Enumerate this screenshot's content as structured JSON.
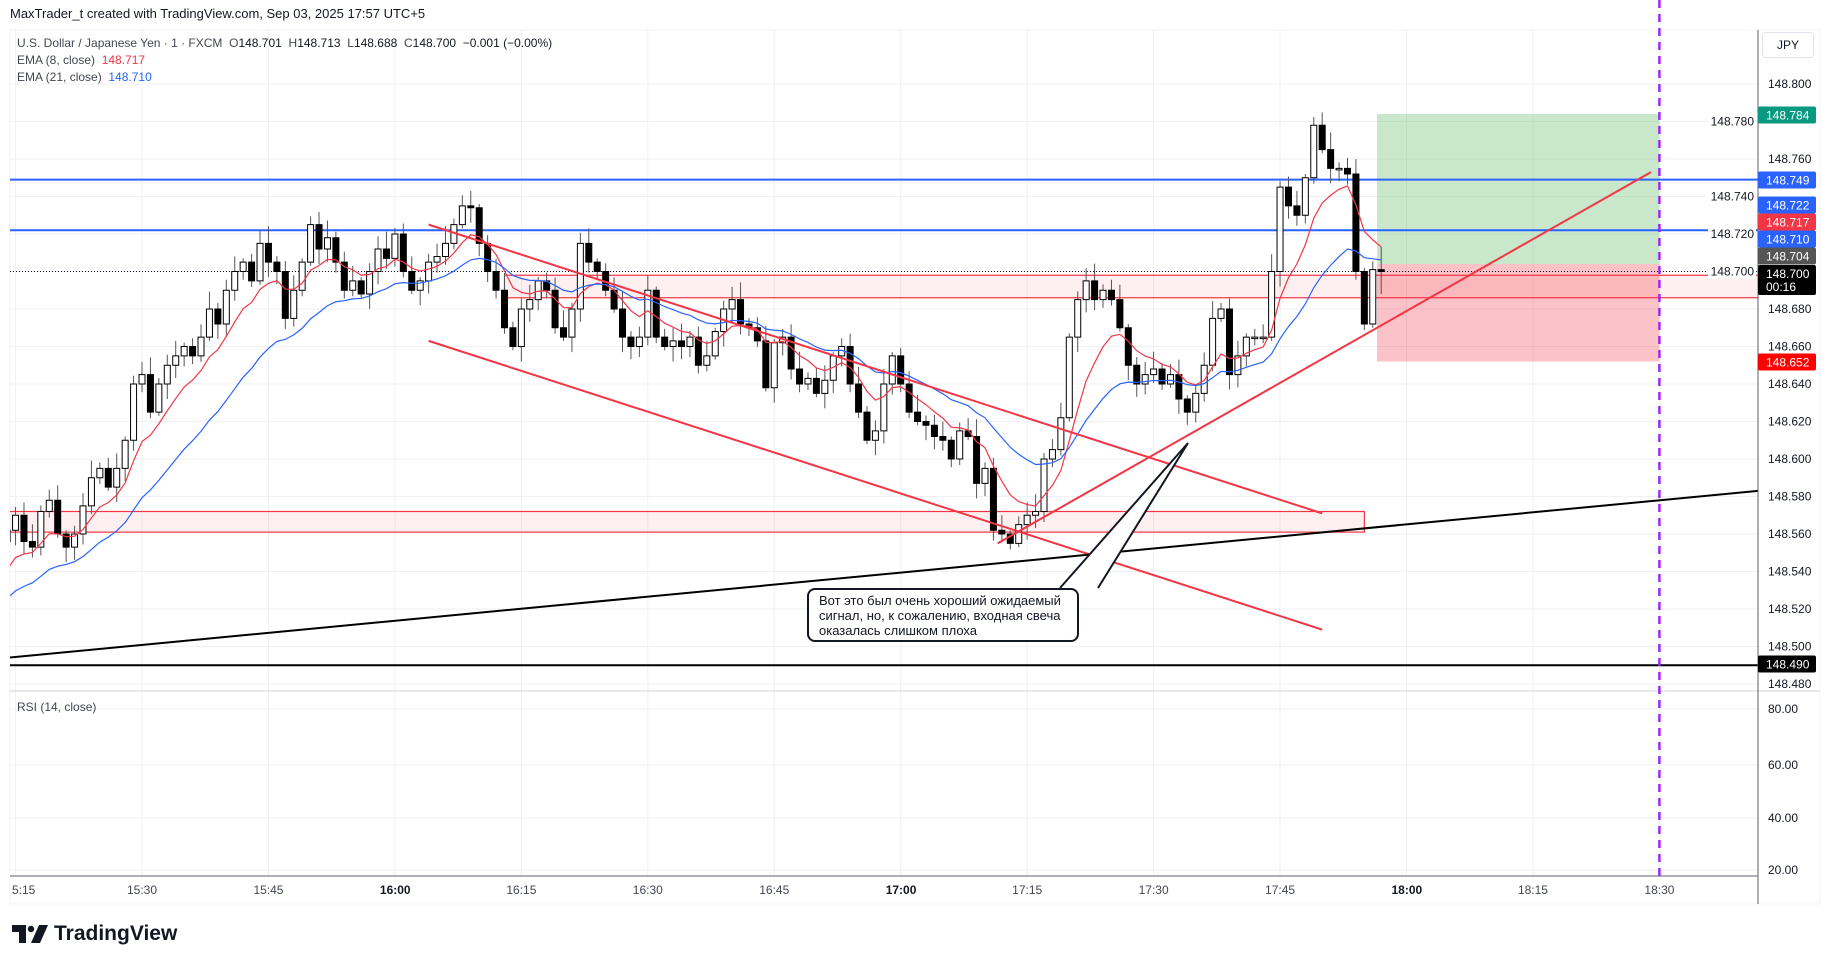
{
  "credit": "MaxTrader_t created with TradingView.com, Sep 03, 2025 17:57 UTC+5",
  "symbol": {
    "name": "U.S. Dollar / Japanese Yen · 1 · FXCM",
    "o_label": "O",
    "o": "148.701",
    "h_label": "H",
    "h": "148.713",
    "l_label": "L",
    "l": "148.688",
    "c_label": "C",
    "c": "148.700",
    "change": "−0.001 (−0.00%)"
  },
  "indicators": {
    "ema8": {
      "label": "EMA (8, close)",
      "value": "148.717",
      "color": "#f23645"
    },
    "ema21": {
      "label": "EMA (21, close)",
      "value": "148.710",
      "color": "#2962ff"
    },
    "rsi": {
      "label": "RSI (14, close)"
    }
  },
  "currency_button": "JPY",
  "price_axis": {
    "ticks": [
      "148.800",
      "148.780",
      "148.760",
      "148.740",
      "148.720",
      "148.700",
      "148.680",
      "148.660",
      "148.640",
      "148.620",
      "148.600",
      "148.580",
      "148.560",
      "148.540",
      "148.520",
      "148.500",
      "148.480"
    ],
    "labels": [
      {
        "value": "148.784",
        "color": "#089981",
        "name": "take-profit"
      },
      {
        "value": "148.749",
        "color": "#2962ff",
        "name": "blue-line-upper"
      },
      {
        "value": "148.722",
        "color": "#2962ff",
        "name": "blue-line-lower"
      },
      {
        "value": "148.717",
        "color": "#f23645",
        "name": "ema8"
      },
      {
        "value": "148.710",
        "color": "#2962ff",
        "name": "ema21"
      },
      {
        "value": "148.704",
        "color": "#555555",
        "name": "entry"
      },
      {
        "value": "148.700",
        "color": "#000000",
        "name": "last-price",
        "sub": "00:16"
      },
      {
        "value": "148.652",
        "color": "#ff0000",
        "name": "stop-loss"
      },
      {
        "value": "148.490",
        "color": "#000000",
        "name": "black-horizontal-line"
      }
    ]
  },
  "rsi_axis": {
    "ticks": [
      "80.00",
      "60.00",
      "40.00",
      "20.00"
    ]
  },
  "time_axis": {
    "labels": [
      {
        "text": "5:15",
        "minute": -15,
        "bold": false
      },
      {
        "text": "15:30",
        "minute": 0,
        "bold": false
      },
      {
        "text": "15:45",
        "minute": 15,
        "bold": false
      },
      {
        "text": "16:00",
        "minute": 30,
        "bold": true
      },
      {
        "text": "16:15",
        "minute": 45,
        "bold": false
      },
      {
        "text": "16:30",
        "minute": 60,
        "bold": false
      },
      {
        "text": "16:45",
        "minute": 75,
        "bold": false
      },
      {
        "text": "17:00",
        "minute": 90,
        "bold": true
      },
      {
        "text": "17:15",
        "minute": 105,
        "bold": false
      },
      {
        "text": "17:30",
        "minute": 120,
        "bold": false
      },
      {
        "text": "17:45",
        "minute": 135,
        "bold": false
      },
      {
        "text": "18:00",
        "minute": 150,
        "bold": true
      },
      {
        "text": "18:15",
        "minute": 165,
        "bold": false
      },
      {
        "text": "18:30",
        "minute": 180,
        "bold": false
      }
    ]
  },
  "callout": {
    "text": "Вот это был очень хороший ожидаемый\nсигнал, но, к сожалению, входная свеча\nоказалась слишком плоха"
  },
  "logo": "TradingView",
  "chart_data": {
    "type": "candlestick",
    "symbol": "USDJPY",
    "interval_minutes": 1,
    "start_time": "15:14",
    "start_minute": -16,
    "ylim": [
      148.475,
      148.81
    ],
    "first_open": 148.556,
    "last_candle": {
      "o": 148.701,
      "h": 148.713,
      "l": 148.688,
      "c": 148.7
    },
    "ema_seed": {
      "ema8": 148.535,
      "ema21": 148.522
    },
    "closes": [
      148.562,
      148.57,
      148.556,
      148.553,
      148.572,
      148.578,
      148.56,
      148.553,
      148.56,
      148.575,
      148.59,
      148.595,
      148.585,
      148.595,
      148.61,
      148.64,
      148.645,
      148.625,
      148.64,
      148.65,
      148.655,
      148.66,
      148.655,
      148.665,
      148.68,
      148.672,
      148.69,
      148.7,
      148.705,
      148.695,
      148.715,
      148.705,
      148.7,
      148.675,
      148.69,
      148.705,
      148.725,
      148.712,
      148.718,
      148.705,
      148.69,
      148.695,
      148.688,
      148.7,
      148.712,
      148.707,
      148.72,
      148.7,
      148.69,
      148.695,
      148.705,
      148.708,
      148.715,
      148.725,
      148.735,
      148.734,
      148.715,
      148.7,
      148.69,
      148.67,
      148.66,
      148.68,
      148.685,
      148.695,
      148.69,
      148.67,
      148.665,
      148.68,
      148.715,
      148.705,
      148.7,
      148.69,
      148.68,
      148.665,
      148.66,
      148.665,
      148.69,
      148.665,
      148.66,
      148.663,
      148.66,
      148.665,
      148.65,
      148.655,
      148.668,
      148.68,
      148.685,
      148.672,
      148.67,
      148.663,
      148.638,
      148.662,
      148.665,
      148.648,
      148.64,
      148.643,
      148.635,
      148.642,
      148.655,
      148.66,
      148.64,
      148.625,
      148.61,
      148.615,
      148.64,
      148.655,
      148.64,
      148.625,
      148.62,
      148.618,
      148.612,
      148.61,
      148.6,
      148.615,
      148.612,
      148.587,
      148.595,
      148.562,
      148.56,
      148.555,
      148.565,
      148.57,
      148.572,
      148.6,
      148.605,
      148.622,
      148.665,
      148.685,
      148.695,
      148.685,
      148.69,
      148.685,
      148.67,
      148.65,
      148.64,
      148.645,
      148.648,
      148.64,
      148.645,
      148.632,
      148.625,
      148.635,
      148.65,
      148.675,
      148.68,
      148.645,
      148.655,
      148.665,
      148.665,
      148.665,
      148.7,
      148.745,
      148.735,
      148.73,
      148.75,
      148.778,
      148.765,
      148.755,
      148.755,
      148.752,
      148.7,
      148.672,
      148.701,
      148.7
    ],
    "drawings": {
      "horizontal_lines": [
        {
          "price": 148.749,
          "color": "#2962ff",
          "name": "blue-resistance-upper"
        },
        {
          "price": 148.722,
          "color": "#2962ff",
          "name": "blue-resistance-lower"
        },
        {
          "price": 148.49,
          "color": "#000000",
          "name": "black-support"
        }
      ],
      "last_price_dotted": 148.7,
      "zones": [
        {
          "from_minute": 43,
          "to": "right",
          "top": 148.698,
          "bottom": 148.686,
          "name": "resistance-zone"
        },
        {
          "from_minute": -20,
          "to_minute": 145,
          "top": 148.572,
          "bottom": 148.561,
          "name": "support-zone"
        }
      ],
      "trend_lines": [
        {
          "m1": 34,
          "p1": 148.725,
          "m2": 140,
          "p2": 148.571,
          "color": "#f23645",
          "name": "channel-upper-line"
        },
        {
          "m1": 34,
          "p1": 148.663,
          "m2": 140,
          "p2": 148.509,
          "color": "#f23645",
          "name": "channel-lower-line"
        },
        {
          "m1": 101.5,
          "p1": 148.555,
          "m2": 179,
          "p2": 148.753,
          "color": "#f23645",
          "name": "ascending-red-trendline"
        },
        {
          "m1": -16,
          "p1": 148.494,
          "m2": 191.7,
          "p2": 148.583,
          "color": "#000000",
          "name": "ascending-black-trendline"
        }
      ],
      "long_position": {
        "from_minute": 146.5,
        "to_minute": 180,
        "entry": 148.704,
        "target": 148.784,
        "stop": 148.652
      },
      "vertical_marker": {
        "minute": 180,
        "color": "#9c27ff"
      }
    }
  }
}
